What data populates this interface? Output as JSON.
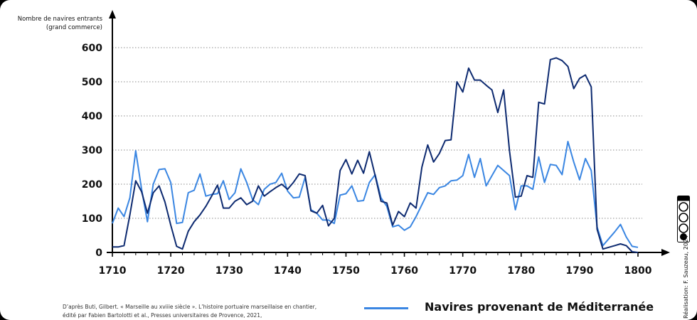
{
  "chart_data": {
    "type": "line",
    "ylabel_line1": "Nombre de navires entrants",
    "ylabel_line2": "(grand commerce)",
    "xlim": [
      1710,
      1800
    ],
    "ylim": [
      0,
      600
    ],
    "x_ticks": [
      1710,
      1720,
      1730,
      1740,
      1750,
      1760,
      1770,
      1780,
      1790,
      1800
    ],
    "y_ticks": [
      0,
      100,
      200,
      300,
      400,
      500,
      600
    ],
    "grid": "horizontal dotted",
    "series": [
      {
        "name": "",
        "color": "#0d2a70",
        "x": [
          1710,
          1711,
          1712,
          1713,
          1714,
          1715,
          1716,
          1717,
          1718,
          1719,
          1720,
          1721,
          1722,
          1723,
          1724,
          1725,
          1726,
          1727,
          1728,
          1729,
          1730,
          1731,
          1732,
          1733,
          1734,
          1735,
          1736,
          1737,
          1738,
          1739,
          1740,
          1741,
          1742,
          1743,
          1744,
          1745,
          1746,
          1747,
          1748,
          1749,
          1750,
          1751,
          1752,
          1753,
          1754,
          1755,
          1756,
          1757,
          1758,
          1759,
          1760,
          1761,
          1762,
          1763,
          1764,
          1765,
          1766,
          1767,
          1768,
          1769,
          1770,
          1771,
          1772,
          1773,
          1774,
          1775,
          1776,
          1777,
          1778,
          1779,
          1780,
          1781,
          1782,
          1783,
          1784,
          1785,
          1786,
          1787,
          1788,
          1789,
          1790,
          1791,
          1792,
          1793,
          1794,
          1795,
          1796,
          1797,
          1798,
          1799,
          1800
        ],
        "values": [
          16,
          16,
          20,
          110,
          210,
          178,
          115,
          175,
          195,
          148,
          80,
          18,
          10,
          62,
          90,
          110,
          135,
          165,
          197,
          130,
          130,
          150,
          160,
          140,
          150,
          195,
          165,
          178,
          190,
          200,
          185,
          205,
          230,
          225,
          122,
          115,
          138,
          78,
          100,
          240,
          272,
          230,
          270,
          232,
          295,
          225,
          150,
          145,
          80,
          120,
          105,
          145,
          130,
          250,
          315,
          265,
          290,
          328,
          330,
          500,
          470,
          540,
          505,
          505,
          490,
          476,
          410,
          476,
          297,
          162,
          165,
          225,
          220,
          440,
          435,
          565,
          570,
          562,
          545,
          480,
          510,
          520,
          485,
          68,
          10,
          15,
          20,
          25,
          20,
          2,
          0
        ]
      },
      {
        "name": "Navires provenant de Méditerranée",
        "color": "#3a86e2",
        "x": [
          1710,
          1711,
          1712,
          1713,
          1714,
          1715,
          1716,
          1717,
          1718,
          1719,
          1720,
          1721,
          1722,
          1723,
          1724,
          1725,
          1726,
          1727,
          1728,
          1729,
          1730,
          1731,
          1732,
          1733,
          1734,
          1735,
          1736,
          1737,
          1738,
          1739,
          1740,
          1741,
          1742,
          1743,
          1744,
          1745,
          1746,
          1747,
          1748,
          1749,
          1750,
          1751,
          1752,
          1753,
          1754,
          1755,
          1756,
          1757,
          1758,
          1759,
          1760,
          1761,
          1762,
          1763,
          1764,
          1765,
          1766,
          1767,
          1768,
          1769,
          1770,
          1771,
          1772,
          1773,
          1774,
          1775,
          1776,
          1777,
          1778,
          1779,
          1780,
          1781,
          1782,
          1783,
          1784,
          1785,
          1786,
          1787,
          1788,
          1789,
          1790,
          1791,
          1792,
          1793,
          1794,
          1795,
          1796,
          1797,
          1798,
          1799,
          1800
        ],
        "values": [
          85,
          130,
          105,
          160,
          298,
          185,
          90,
          200,
          243,
          245,
          205,
          85,
          88,
          175,
          182,
          230,
          165,
          170,
          172,
          210,
          155,
          175,
          245,
          205,
          155,
          140,
          185,
          200,
          205,
          232,
          180,
          160,
          162,
          220,
          125,
          115,
          95,
          95,
          85,
          168,
          172,
          195,
          150,
          152,
          205,
          228,
          160,
          135,
          75,
          80,
          65,
          75,
          105,
          140,
          175,
          170,
          190,
          195,
          210,
          212,
          225,
          287,
          220,
          275,
          195,
          225,
          255,
          240,
          225,
          125,
          195,
          195,
          185,
          280,
          205,
          258,
          255,
          228,
          325,
          265,
          213,
          275,
          240,
          75,
          20,
          40,
          60,
          82,
          45,
          18,
          15
        ]
      }
    ],
    "legend": {
      "placement": "bottom-center",
      "label": "Navires provenant de Méditerranée"
    }
  },
  "source_line1": "D’après Buti, Gilbert. « Marseille au xviiie siècle ». L’histoire portuaire marseillaise en chantier,",
  "source_line2": "édité par Fabien Bartolotti et al., Presses universitaires de Provence, 2021,",
  "credit": "Réalisation: F. Sauzeau, 2024",
  "license_badge": "cc-by-nc-sa-icon"
}
